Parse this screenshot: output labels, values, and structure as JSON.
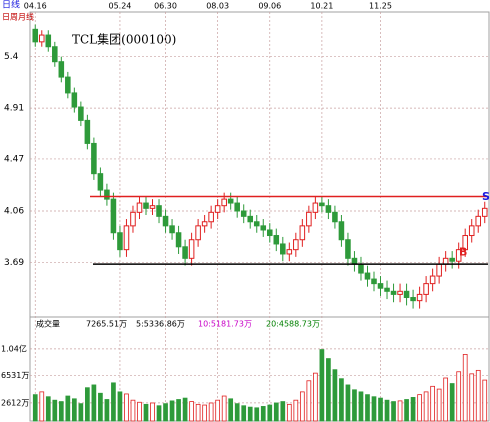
{
  "period_label": "日线",
  "period_tabs": "日周月线",
  "chart_data": {
    "type": "candlestick",
    "title": "TCL集团(000100)",
    "categories": [
      "04.16",
      null,
      null,
      null,
      null,
      null,
      null,
      null,
      null,
      null,
      null,
      null,
      null,
      "05.24",
      null,
      null,
      null,
      null,
      null,
      null,
      "06.30",
      null,
      null,
      null,
      null,
      null,
      null,
      null,
      "08.03",
      null,
      null,
      null,
      null,
      null,
      null,
      null,
      "09.06",
      null,
      null,
      null,
      null,
      null,
      null,
      null,
      "10.21",
      null,
      null,
      null,
      null,
      null,
      null,
      null,
      null,
      "11.25",
      null,
      null,
      null,
      null,
      null,
      null,
      null,
      null,
      null,
      null,
      null,
      null,
      null,
      null,
      null,
      null
    ],
    "open": [
      5.68,
      5.55,
      5.62,
      5.5,
      5.35,
      5.2,
      5.05,
      4.92,
      4.8,
      4.6,
      4.35,
      4.22,
      4.15,
      3.9,
      3.78,
      3.95,
      4.05,
      4.12,
      4.08,
      4.1,
      4.02,
      3.95,
      3.9,
      3.8,
      3.72,
      3.85,
      3.95,
      3.98,
      4.05,
      4.1,
      4.15,
      4.12,
      4.06,
      4.02,
      3.98,
      3.95,
      3.92,
      3.88,
      3.82,
      3.75,
      3.78,
      3.85,
      3.95,
      4.05,
      4.12,
      4.1,
      4.05,
      3.98,
      3.85,
      3.72,
      3.68,
      3.62,
      3.58,
      3.55,
      3.52,
      3.5,
      3.48,
      3.5,
      3.46,
      3.44,
      3.48,
      3.55,
      3.6,
      3.68,
      3.72,
      3.7,
      3.78,
      3.88,
      3.95,
      4.02
    ],
    "high": [
      5.73,
      5.67,
      5.67,
      5.55,
      5.4,
      5.25,
      5.1,
      4.97,
      4.85,
      4.65,
      4.4,
      4.27,
      4.2,
      3.95,
      4.0,
      4.1,
      4.17,
      4.17,
      4.15,
      4.15,
      4.07,
      4.0,
      3.95,
      3.85,
      3.9,
      4.0,
      4.03,
      4.1,
      4.15,
      4.2,
      4.2,
      4.17,
      4.11,
      4.07,
      4.03,
      4.0,
      3.97,
      3.93,
      3.87,
      3.83,
      3.9,
      4.0,
      4.1,
      4.17,
      4.17,
      4.15,
      4.1,
      4.03,
      3.9,
      3.77,
      3.73,
      3.67,
      3.63,
      3.6,
      3.57,
      3.55,
      3.55,
      3.55,
      3.51,
      3.53,
      3.6,
      3.65,
      3.73,
      3.77,
      3.77,
      3.83,
      3.93,
      4.0,
      4.07,
      4.13
    ],
    "low": [
      5.5,
      5.5,
      5.45,
      5.3,
      5.15,
      5.0,
      4.87,
      4.75,
      4.55,
      4.3,
      4.17,
      4.1,
      3.85,
      3.73,
      3.73,
      3.9,
      4.0,
      4.03,
      4.03,
      3.97,
      3.9,
      3.85,
      3.75,
      3.67,
      3.67,
      3.8,
      3.9,
      3.93,
      4.0,
      4.05,
      4.07,
      4.01,
      3.97,
      3.93,
      3.9,
      3.87,
      3.83,
      3.77,
      3.7,
      3.7,
      3.73,
      3.8,
      3.9,
      4.0,
      4.05,
      4.0,
      3.93,
      3.8,
      3.67,
      3.63,
      3.57,
      3.53,
      3.5,
      3.47,
      3.45,
      3.43,
      3.43,
      3.41,
      3.39,
      3.39,
      3.43,
      3.5,
      3.55,
      3.63,
      3.65,
      3.65,
      3.73,
      3.83,
      3.9,
      3.97
    ],
    "close": [
      5.55,
      5.62,
      5.5,
      5.35,
      5.2,
      5.05,
      4.92,
      4.8,
      4.6,
      4.35,
      4.22,
      4.15,
      3.9,
      3.78,
      3.95,
      4.05,
      4.12,
      4.08,
      4.1,
      4.02,
      3.95,
      3.9,
      3.8,
      3.72,
      3.85,
      3.95,
      3.98,
      4.05,
      4.1,
      4.15,
      4.12,
      4.06,
      4.02,
      3.98,
      3.95,
      3.92,
      3.88,
      3.82,
      3.75,
      3.78,
      3.85,
      3.95,
      4.05,
      4.12,
      4.1,
      4.05,
      3.98,
      3.85,
      3.72,
      3.68,
      3.62,
      3.58,
      3.55,
      3.52,
      3.5,
      3.48,
      3.5,
      3.46,
      3.44,
      3.48,
      3.55,
      3.6,
      3.68,
      3.72,
      3.7,
      3.78,
      3.88,
      3.95,
      4.02,
      4.08
    ],
    "up_color": "#e02020",
    "down_color": "#2e9a3a",
    "log_scale": true,
    "ylim": [
      3.35,
      5.8
    ],
    "yticks": [
      3.69,
      4.06,
      4.47,
      4.91,
      5.4
    ],
    "grid": true,
    "hlines": [
      {
        "value": 4.17,
        "color": "#e02020"
      },
      {
        "value": 3.68,
        "color": "#000000"
      }
    ],
    "annotations": [
      {
        "text": "S",
        "value": 4.12,
        "color": "#1a1ae0"
      },
      {
        "text": "B",
        "value": 3.72,
        "color": "#e02020"
      }
    ],
    "volume": {
      "header": [
        {
          "text": "成交量",
          "color": "#000000"
        },
        {
          "text": "7265.51万",
          "color": "#000000"
        },
        {
          "text": "5:5336.86万",
          "color": "#000000"
        },
        {
          "text": "10:5181.73万",
          "color": "#c800c8"
        },
        {
          "text": "20:4588.73万",
          "color": "#008000"
        }
      ],
      "values": [
        3800,
        4200,
        3500,
        3000,
        2800,
        3600,
        3200,
        2500,
        4800,
        5200,
        4000,
        3100,
        5500,
        4200,
        3900,
        3000,
        2700,
        2400,
        2600,
        2200,
        2500,
        2900,
        3100,
        3300,
        2800,
        2400,
        2300,
        2600,
        3000,
        3600,
        3200,
        2500,
        2200,
        2000,
        1900,
        2100,
        2300,
        2600,
        2800,
        2400,
        3000,
        4200,
        5800,
        6900,
        10300,
        9000,
        7400,
        6100,
        5200,
        4500,
        4200,
        3800,
        3500,
        3300,
        3000,
        2800,
        2900,
        3100,
        3400,
        3800,
        4200,
        5000,
        4600,
        6200,
        5400,
        7100,
        9600,
        6800,
        7300,
        5900
      ],
      "ylim": [
        0,
        12400
      ],
      "yticks": [
        {
          "value": 2612,
          "label": "2612万"
        },
        {
          "value": 6531,
          "label": "6531万"
        },
        {
          "value": 10400,
          "label": "1.04亿"
        }
      ]
    }
  }
}
